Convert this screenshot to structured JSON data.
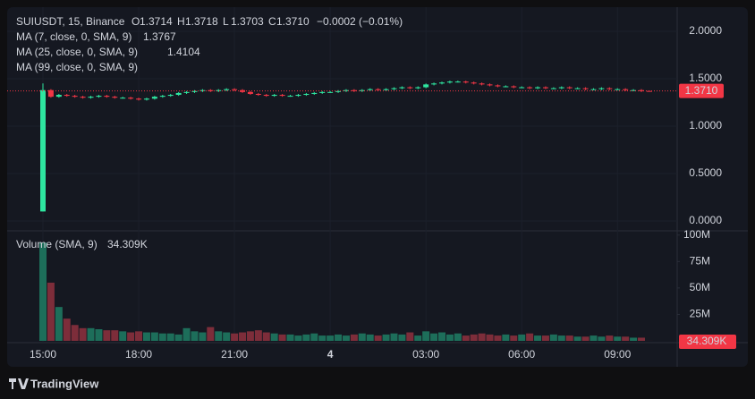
{
  "legend": {
    "symbol": "SUIUSDT, 15, Binance",
    "ohlc": [
      {
        "key": "O",
        "value": "1.3714"
      },
      {
        "key": "H",
        "value": "1.3718"
      },
      {
        "key": "L",
        "value": "1.3703"
      },
      {
        "key": "C",
        "value": "1.3710"
      }
    ],
    "change": "−0.0002 (−0.01%)",
    "indicators": [
      {
        "label": "MA (7, close, 0, SMA, 9)",
        "value": "1.3767",
        "color": "#f5b342"
      },
      {
        "label": "MA (25, close, 0, SMA, 9)",
        "value": "1.4104",
        "color": "#e040fb"
      },
      {
        "label": "MA (99, close, 0, SMA, 9)"
      }
    ]
  },
  "branding": "TradingView",
  "chart_data": [
    {
      "type": "candlestick",
      "up_color": "#2ee6a0",
      "down_color": "#f23645",
      "open": [
        0.1,
        1.38,
        1.31,
        1.33,
        1.32,
        1.31,
        1.3,
        1.31,
        1.32,
        1.31,
        1.3,
        1.3,
        1.29,
        1.28,
        1.29,
        1.31,
        1.32,
        1.33,
        1.35,
        1.36,
        1.37,
        1.38,
        1.37,
        1.38,
        1.39,
        1.38,
        1.36,
        1.34,
        1.33,
        1.32,
        1.33,
        1.32,
        1.32,
        1.33,
        1.34,
        1.35,
        1.36,
        1.36,
        1.37,
        1.38,
        1.37,
        1.38,
        1.39,
        1.38,
        1.39,
        1.4,
        1.41,
        1.4,
        1.41,
        1.44,
        1.45,
        1.46,
        1.47,
        1.47,
        1.46,
        1.45,
        1.44,
        1.43,
        1.42,
        1.42,
        1.41,
        1.41,
        1.4,
        1.41,
        1.4,
        1.4,
        1.41,
        1.4,
        1.4,
        1.39,
        1.39,
        1.4,
        1.39,
        1.39,
        1.38,
        1.38,
        1.3714
      ],
      "high": [
        1.45,
        1.39,
        1.34,
        1.34,
        1.33,
        1.32,
        1.32,
        1.33,
        1.33,
        1.32,
        1.31,
        1.31,
        1.3,
        1.3,
        1.32,
        1.33,
        1.34,
        1.36,
        1.37,
        1.38,
        1.39,
        1.39,
        1.39,
        1.4,
        1.4,
        1.39,
        1.37,
        1.35,
        1.34,
        1.34,
        1.34,
        1.33,
        1.34,
        1.35,
        1.36,
        1.37,
        1.37,
        1.38,
        1.39,
        1.39,
        1.39,
        1.4,
        1.4,
        1.4,
        1.41,
        1.42,
        1.42,
        1.42,
        1.45,
        1.46,
        1.47,
        1.48,
        1.48,
        1.48,
        1.47,
        1.46,
        1.45,
        1.44,
        1.43,
        1.43,
        1.42,
        1.42,
        1.42,
        1.42,
        1.41,
        1.42,
        1.42,
        1.41,
        1.41,
        1.4,
        1.41,
        1.41,
        1.4,
        1.4,
        1.39,
        1.39,
        1.3718
      ],
      "low": [
        0.1,
        1.3,
        1.3,
        1.31,
        1.3,
        1.29,
        1.29,
        1.3,
        1.3,
        1.29,
        1.29,
        1.28,
        1.27,
        1.27,
        1.28,
        1.3,
        1.31,
        1.32,
        1.34,
        1.35,
        1.36,
        1.36,
        1.36,
        1.37,
        1.37,
        1.35,
        1.33,
        1.32,
        1.31,
        1.31,
        1.31,
        1.31,
        1.31,
        1.32,
        1.33,
        1.34,
        1.35,
        1.35,
        1.36,
        1.36,
        1.36,
        1.37,
        1.37,
        1.37,
        1.38,
        1.39,
        1.39,
        1.39,
        1.4,
        1.43,
        1.44,
        1.45,
        1.46,
        1.45,
        1.44,
        1.43,
        1.42,
        1.41,
        1.41,
        1.4,
        1.4,
        1.39,
        1.39,
        1.39,
        1.39,
        1.39,
        1.39,
        1.39,
        1.38,
        1.38,
        1.38,
        1.38,
        1.38,
        1.37,
        1.37,
        1.36,
        1.3703
      ],
      "close": [
        1.38,
        1.31,
        1.33,
        1.32,
        1.31,
        1.3,
        1.31,
        1.32,
        1.31,
        1.3,
        1.3,
        1.29,
        1.28,
        1.29,
        1.31,
        1.32,
        1.33,
        1.35,
        1.36,
        1.37,
        1.38,
        1.37,
        1.38,
        1.39,
        1.38,
        1.36,
        1.34,
        1.33,
        1.32,
        1.33,
        1.32,
        1.32,
        1.33,
        1.34,
        1.35,
        1.36,
        1.36,
        1.37,
        1.38,
        1.37,
        1.38,
        1.39,
        1.38,
        1.39,
        1.4,
        1.41,
        1.4,
        1.41,
        1.44,
        1.45,
        1.46,
        1.47,
        1.47,
        1.46,
        1.45,
        1.44,
        1.43,
        1.42,
        1.42,
        1.41,
        1.41,
        1.4,
        1.41,
        1.4,
        1.4,
        1.41,
        1.4,
        1.4,
        1.39,
        1.39,
        1.4,
        1.39,
        1.39,
        1.38,
        1.38,
        1.37,
        1.371
      ],
      "last_price": 1.371,
      "last_price_label": "1.3710",
      "ylim": [
        -0.104,
        2.255
      ],
      "yticks": [
        {
          "value": 0,
          "label": "0.0000"
        },
        {
          "value": 0.5,
          "label": "0.5000"
        },
        {
          "value": 1,
          "label": "1.0000"
        },
        {
          "value": 1.5,
          "label": "1.5000"
        },
        {
          "value": 2,
          "label": "2.0000"
        }
      ],
      "xticks": [
        {
          "value": 0,
          "label": "15:00"
        },
        {
          "value": 12,
          "label": "18:00"
        },
        {
          "value": 24,
          "label": "21:00"
        },
        {
          "value": 36,
          "label": "4"
        },
        {
          "value": 48,
          "label": "03:00"
        },
        {
          "value": 60,
          "label": "06:00"
        },
        {
          "value": 72,
          "label": "09:00"
        }
      ]
    },
    {
      "type": "bar",
      "title": "Volume (SMA, 9)",
      "current_label": "34.309K",
      "values": [
        93000000,
        55000000,
        32000000,
        21000000,
        15000000,
        12000000,
        12000000,
        11000000,
        10000000,
        10000000,
        9000000,
        8000000,
        9000000,
        8000000,
        8000000,
        7000000,
        7000000,
        6000000,
        12000000,
        9000000,
        8000000,
        13000000,
        9000000,
        8000000,
        7000000,
        8000000,
        9000000,
        10000000,
        8000000,
        7000000,
        6000000,
        6000000,
        5000000,
        6000000,
        7000000,
        5000000,
        5000000,
        6000000,
        5000000,
        6000000,
        7000000,
        6000000,
        5000000,
        6000000,
        7000000,
        6000000,
        8000000,
        5000000,
        9000000,
        7000000,
        8000000,
        6000000,
        7000000,
        5000000,
        6000000,
        7000000,
        6000000,
        5000000,
        6000000,
        5000000,
        6000000,
        7000000,
        5000000,
        5000000,
        6000000,
        5000000,
        5000000,
        4000000,
        4000000,
        5000000,
        4000000,
        5000000,
        4000000,
        4000000,
        3000000,
        3000000,
        34309
      ],
      "ylim": [
        0,
        104000000
      ],
      "yticks": [
        {
          "value": 25000000,
          "label": "25M"
        },
        {
          "value": 50000000,
          "label": "50M"
        },
        {
          "value": 75000000,
          "label": "75M"
        },
        {
          "value": 100000000,
          "label": "100M"
        }
      ]
    }
  ]
}
